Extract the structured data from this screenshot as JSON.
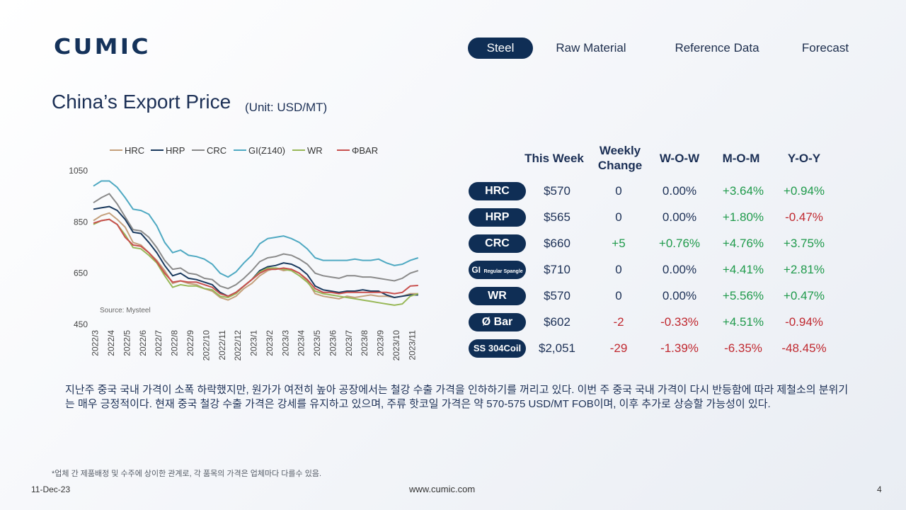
{
  "brand": {
    "logo_text": "CUMIC"
  },
  "nav": [
    {
      "label": "Steel",
      "active": true
    },
    {
      "label": "Raw Material",
      "active": false
    },
    {
      "label": "Reference Data",
      "active": false
    },
    {
      "label": "Forecast",
      "active": false
    }
  ],
  "page": {
    "title": "China’s Export Price",
    "unit": "(Unit: USD/MT)"
  },
  "table": {
    "headers": {
      "this_week": "This Week",
      "weekly_change_1": "Weekly",
      "weekly_change_2": "Change",
      "wow": "W-O-W",
      "mom": "M-O-M",
      "yoy": "Y-O-Y"
    },
    "rows": [
      {
        "product": "HRC",
        "price": "$570",
        "change": "0",
        "wow": "0.00%",
        "mom": "+3.64%",
        "yoy": "+0.94%"
      },
      {
        "product": "HRP",
        "price": "$565",
        "change": "0",
        "wow": "0.00%",
        "mom": "+1.80%",
        "yoy": "-0.47%"
      },
      {
        "product": "CRC",
        "price": "$660",
        "change": "+5",
        "wow": "+0.76%",
        "mom": "+4.76%",
        "yoy": "+3.75%"
      },
      {
        "product": "GI",
        "product_sub": "Regular Spangle",
        "price": "$710",
        "change": "0",
        "wow": "0.00%",
        "mom": "+4.41%",
        "yoy": "+2.81%"
      },
      {
        "product": "WR",
        "price": "$570",
        "change": "0",
        "wow": "0.00%",
        "mom": "+5.56%",
        "yoy": "+0.47%"
      },
      {
        "product": "Ø Bar",
        "price": "$602",
        "change": "-2",
        "wow": "-0.33%",
        "mom": "+4.51%",
        "yoy": "-0.94%"
      },
      {
        "product": "SS 304Coil",
        "price": "$2,051",
        "change": "-29",
        "wow": "-1.39%",
        "mom": "-6.35%",
        "yoy": "-48.45%"
      }
    ]
  },
  "commentary": "지난주 중국 국내 가격이 소폭 하락했지만, 원가가 여전히 높아 공장에서는 철강 수출 가격을 인하하기를 꺼리고 있다. 이번 주 중국 국내 가격이 다시 반등함에 따라 제철소의 분위기는 매우 긍정적이다. 현재 중국 철강 수출 가격은 강세를 유지하고 있으며, 주류 핫코일 가격은 약 570-575 USD/MT FOB이며, 이후 추가로 상승할 가능성이 있다.",
  "footnote": "*업체 간 제품배정 및 수주에 상이한 관계로, 각 품목의 가격은 업체마다 다를수 있음.",
  "footer": {
    "date": "11-Dec-23",
    "url": "www.cumic.com",
    "page": "4"
  },
  "colors": {
    "navy": "#0f2e55",
    "positive": "#1f9a4b",
    "negative": "#c0282f"
  },
  "chart_data": {
    "type": "line",
    "source": "Source: Mysteel",
    "ylim": [
      450,
      1050
    ],
    "yticks": [
      450,
      650,
      850,
      1050
    ],
    "x_tick_labels": [
      "2022/3",
      "2022/4",
      "2022/5",
      "2022/6",
      "2022/7",
      "2022/8",
      "2022/9",
      "2022/10",
      "2022/11",
      "2022/12",
      "2023/1",
      "2023/2",
      "2023/3",
      "2023/4",
      "2023/5",
      "2023/6",
      "2023/7",
      "2023/8",
      "2023/9",
      "2023/10",
      "2023/11"
    ],
    "x_range": [
      0,
      21
    ],
    "legend_position": "top",
    "series": [
      {
        "name": "HRC",
        "color": "#c4a07c",
        "points": [
          [
            0,
            855
          ],
          [
            0.5,
            875
          ],
          [
            1,
            885
          ],
          [
            1.5,
            860
          ],
          [
            2,
            830
          ],
          [
            2.5,
            770
          ],
          [
            3,
            760
          ],
          [
            3.5,
            730
          ],
          [
            4,
            700
          ],
          [
            4.5,
            660
          ],
          [
            5,
            610
          ],
          [
            5.5,
            620
          ],
          [
            6,
            610
          ],
          [
            6.5,
            605
          ],
          [
            7,
            590
          ],
          [
            7.5,
            580
          ],
          [
            8,
            555
          ],
          [
            8.5,
            545
          ],
          [
            9,
            560
          ],
          [
            9.5,
            590
          ],
          [
            10,
            610
          ],
          [
            10.5,
            640
          ],
          [
            11,
            660
          ],
          [
            11.5,
            670
          ],
          [
            12,
            660
          ],
          [
            12.5,
            665
          ],
          [
            13,
            650
          ],
          [
            13.5,
            620
          ],
          [
            14,
            570
          ],
          [
            14.5,
            560
          ],
          [
            15,
            555
          ],
          [
            15.5,
            550
          ],
          [
            16,
            560
          ],
          [
            16.5,
            555
          ],
          [
            17,
            560
          ],
          [
            17.5,
            565
          ],
          [
            18,
            560
          ],
          [
            18.5,
            560
          ],
          [
            19,
            555
          ],
          [
            19.5,
            560
          ],
          [
            20,
            570
          ],
          [
            20.5,
            570
          ]
        ]
      },
      {
        "name": "HRP",
        "color": "#1a3a5e",
        "points": [
          [
            0,
            900
          ],
          [
            0.5,
            905
          ],
          [
            1,
            910
          ],
          [
            1.5,
            895
          ],
          [
            2,
            860
          ],
          [
            2.5,
            810
          ],
          [
            3,
            805
          ],
          [
            3.5,
            770
          ],
          [
            4,
            730
          ],
          [
            4.5,
            680
          ],
          [
            5,
            640
          ],
          [
            5.5,
            650
          ],
          [
            6,
            630
          ],
          [
            6.5,
            625
          ],
          [
            7,
            615
          ],
          [
            7.5,
            605
          ],
          [
            8,
            575
          ],
          [
            8.5,
            560
          ],
          [
            9,
            575
          ],
          [
            9.5,
            600
          ],
          [
            10,
            625
          ],
          [
            10.5,
            660
          ],
          [
            11,
            675
          ],
          [
            11.5,
            680
          ],
          [
            12,
            690
          ],
          [
            12.5,
            685
          ],
          [
            13,
            670
          ],
          [
            13.5,
            645
          ],
          [
            14,
            600
          ],
          [
            14.5,
            585
          ],
          [
            15,
            580
          ],
          [
            15.5,
            575
          ],
          [
            16,
            580
          ],
          [
            16.5,
            580
          ],
          [
            17,
            585
          ],
          [
            17.5,
            580
          ],
          [
            18,
            580
          ],
          [
            18.5,
            565
          ],
          [
            19,
            555
          ],
          [
            19.5,
            560
          ],
          [
            20,
            565
          ],
          [
            20.5,
            565
          ]
        ]
      },
      {
        "name": "CRC",
        "color": "#8a8a8a",
        "points": [
          [
            0,
            925
          ],
          [
            0.5,
            945
          ],
          [
            1,
            960
          ],
          [
            1.5,
            920
          ],
          [
            2,
            870
          ],
          [
            2.5,
            820
          ],
          [
            3,
            815
          ],
          [
            3.5,
            790
          ],
          [
            4,
            750
          ],
          [
            4.5,
            700
          ],
          [
            5,
            665
          ],
          [
            5.5,
            670
          ],
          [
            6,
            650
          ],
          [
            6.5,
            645
          ],
          [
            7,
            630
          ],
          [
            7.5,
            625
          ],
          [
            8,
            600
          ],
          [
            8.5,
            590
          ],
          [
            9,
            605
          ],
          [
            9.5,
            630
          ],
          [
            10,
            660
          ],
          [
            10.5,
            695
          ],
          [
            11,
            710
          ],
          [
            11.5,
            715
          ],
          [
            12,
            725
          ],
          [
            12.5,
            720
          ],
          [
            13,
            705
          ],
          [
            13.5,
            685
          ],
          [
            14,
            650
          ],
          [
            14.5,
            640
          ],
          [
            15,
            635
          ],
          [
            15.5,
            630
          ],
          [
            16,
            640
          ],
          [
            16.5,
            640
          ],
          [
            17,
            635
          ],
          [
            17.5,
            635
          ],
          [
            18,
            630
          ],
          [
            18.5,
            625
          ],
          [
            19,
            620
          ],
          [
            19.5,
            630
          ],
          [
            20,
            650
          ],
          [
            20.5,
            660
          ]
        ]
      },
      {
        "name": "GI(Z140)",
        "color": "#4fa9c2",
        "points": [
          [
            0,
            990
          ],
          [
            0.5,
            1010
          ],
          [
            1,
            1010
          ],
          [
            1.5,
            985
          ],
          [
            2,
            945
          ],
          [
            2.5,
            900
          ],
          [
            3,
            895
          ],
          [
            3.5,
            880
          ],
          [
            4,
            835
          ],
          [
            4.5,
            770
          ],
          [
            5,
            730
          ],
          [
            5.5,
            740
          ],
          [
            6,
            720
          ],
          [
            6.5,
            715
          ],
          [
            7,
            705
          ],
          [
            7.5,
            685
          ],
          [
            8,
            650
          ],
          [
            8.5,
            635
          ],
          [
            9,
            655
          ],
          [
            9.5,
            690
          ],
          [
            10,
            720
          ],
          [
            10.5,
            765
          ],
          [
            11,
            785
          ],
          [
            11.5,
            790
          ],
          [
            12,
            795
          ],
          [
            12.5,
            785
          ],
          [
            13,
            770
          ],
          [
            13.5,
            745
          ],
          [
            14,
            710
          ],
          [
            14.5,
            700
          ],
          [
            15,
            700
          ],
          [
            15.5,
            700
          ],
          [
            16,
            700
          ],
          [
            16.5,
            705
          ],
          [
            17,
            700
          ],
          [
            17.5,
            700
          ],
          [
            18,
            705
          ],
          [
            18.5,
            690
          ],
          [
            19,
            680
          ],
          [
            19.5,
            685
          ],
          [
            20,
            700
          ],
          [
            20.5,
            710
          ]
        ]
      },
      {
        "name": "WR",
        "color": "#98b858",
        "points": [
          [
            0,
            840
          ],
          [
            0.5,
            855
          ],
          [
            1,
            860
          ],
          [
            1.5,
            840
          ],
          [
            2,
            800
          ],
          [
            2.5,
            750
          ],
          [
            3,
            745
          ],
          [
            3.5,
            720
          ],
          [
            4,
            690
          ],
          [
            4.5,
            640
          ],
          [
            5,
            595
          ],
          [
            5.5,
            605
          ],
          [
            6,
            600
          ],
          [
            6.5,
            600
          ],
          [
            7,
            590
          ],
          [
            7.5,
            585
          ],
          [
            8,
            560
          ],
          [
            8.5,
            555
          ],
          [
            9,
            570
          ],
          [
            9.5,
            600
          ],
          [
            10,
            625
          ],
          [
            10.5,
            655
          ],
          [
            11,
            670
          ],
          [
            11.5,
            670
          ],
          [
            12,
            665
          ],
          [
            12.5,
            660
          ],
          [
            13,
            640
          ],
          [
            13.5,
            615
          ],
          [
            14,
            580
          ],
          [
            14.5,
            570
          ],
          [
            15,
            565
          ],
          [
            15.5,
            560
          ],
          [
            16,
            555
          ],
          [
            16.5,
            550
          ],
          [
            17,
            545
          ],
          [
            17.5,
            540
          ],
          [
            18,
            535
          ],
          [
            18.5,
            530
          ],
          [
            19,
            525
          ],
          [
            19.5,
            530
          ],
          [
            20,
            560
          ],
          [
            20.5,
            570
          ]
        ]
      },
      {
        "name": "ΦBAR",
        "color": "#c8504e",
        "points": [
          [
            0,
            845
          ],
          [
            0.5,
            855
          ],
          [
            1,
            860
          ],
          [
            1.5,
            840
          ],
          [
            2,
            790
          ],
          [
            2.5,
            760
          ],
          [
            3,
            755
          ],
          [
            3.5,
            730
          ],
          [
            4,
            695
          ],
          [
            4.5,
            650
          ],
          [
            5,
            615
          ],
          [
            5.5,
            620
          ],
          [
            6,
            615
          ],
          [
            6.5,
            615
          ],
          [
            7,
            605
          ],
          [
            7.5,
            595
          ],
          [
            8,
            570
          ],
          [
            8.5,
            560
          ],
          [
            9,
            575
          ],
          [
            9.5,
            600
          ],
          [
            10,
            625
          ],
          [
            10.5,
            650
          ],
          [
            11,
            665
          ],
          [
            11.5,
            665
          ],
          [
            12,
            670
          ],
          [
            12.5,
            665
          ],
          [
            13,
            650
          ],
          [
            13.5,
            625
          ],
          [
            14,
            590
          ],
          [
            14.5,
            575
          ],
          [
            15,
            575
          ],
          [
            15.5,
            570
          ],
          [
            16,
            575
          ],
          [
            16.5,
            575
          ],
          [
            17,
            575
          ],
          [
            17.5,
            575
          ],
          [
            18,
            575
          ],
          [
            18.5,
            575
          ],
          [
            19,
            570
          ],
          [
            19.5,
            575
          ],
          [
            20,
            600
          ],
          [
            20.5,
            602
          ]
        ]
      }
    ]
  }
}
